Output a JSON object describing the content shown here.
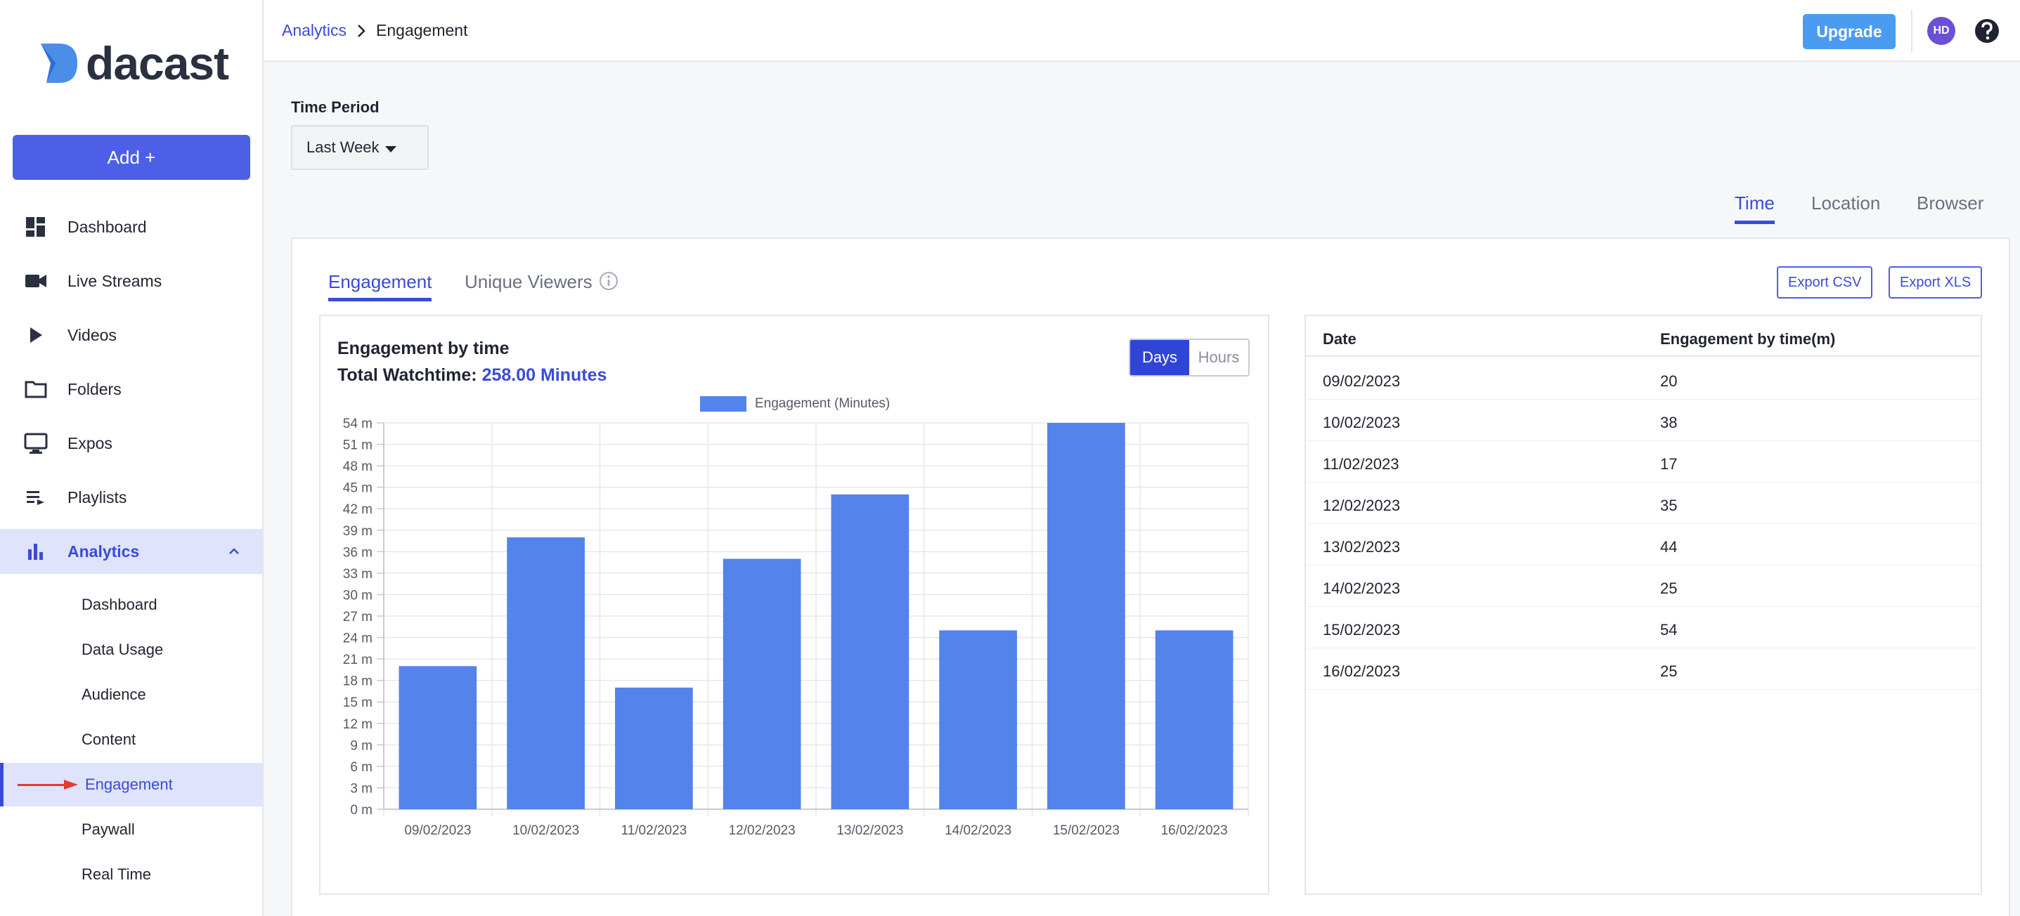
{
  "brand": {
    "name": "dacast"
  },
  "sidebar": {
    "add_label": "Add +",
    "items": [
      {
        "label": "Dashboard",
        "icon": "dashboard-icon"
      },
      {
        "label": "Live Streams",
        "icon": "video-camera-icon"
      },
      {
        "label": "Videos",
        "icon": "play-icon"
      },
      {
        "label": "Folders",
        "icon": "folder-icon"
      },
      {
        "label": "Expos",
        "icon": "monitor-icon"
      },
      {
        "label": "Playlists",
        "icon": "playlist-icon"
      },
      {
        "label": "Analytics",
        "icon": "bar-chart-icon",
        "active": true
      }
    ],
    "analytics_sub": [
      {
        "label": "Dashboard"
      },
      {
        "label": "Data Usage"
      },
      {
        "label": "Audience"
      },
      {
        "label": "Content"
      },
      {
        "label": "Engagement",
        "active": true
      },
      {
        "label": "Paywall"
      },
      {
        "label": "Real Time"
      }
    ]
  },
  "header": {
    "breadcrumb": {
      "parent": "Analytics",
      "current": "Engagement"
    },
    "upgrade_label": "Upgrade",
    "avatar_initials": "HD"
  },
  "main": {
    "time_period_label": "Time Period",
    "time_period_value": "Last Week",
    "view_tabs": [
      {
        "label": "Time",
        "active": true
      },
      {
        "label": "Location"
      },
      {
        "label": "Browser"
      }
    ],
    "metric_tabs": [
      {
        "label": "Engagement",
        "active": true
      },
      {
        "label": "Unique Viewers"
      }
    ],
    "export_csv_label": "Export CSV",
    "export_xls_label": "Export XLS",
    "chart_heading": "Engagement by time",
    "total_label": "Total Watchtime:",
    "total_value": "258.00 Minutes",
    "granularity": {
      "days": "Days",
      "hours": "Hours",
      "selected": "Days"
    },
    "table": {
      "headers": [
        "Date",
        "Engagement by time(m)"
      ],
      "rows": [
        [
          "09/02/2023",
          "20"
        ],
        [
          "10/02/2023",
          "38"
        ],
        [
          "11/02/2023",
          "17"
        ],
        [
          "12/02/2023",
          "35"
        ],
        [
          "13/02/2023",
          "44"
        ],
        [
          "14/02/2023",
          "25"
        ],
        [
          "15/02/2023",
          "54"
        ],
        [
          "16/02/2023",
          "25"
        ]
      ]
    }
  },
  "colors": {
    "accent": "#3a4bd8",
    "bar": "#5483ec",
    "upgrade": "#4a9cf0",
    "avatar": "#6a4fd8",
    "arrow": "#e53a2f"
  },
  "chart_data": {
    "type": "bar",
    "categories": [
      "09/02/2023",
      "10/02/2023",
      "11/02/2023",
      "12/02/2023",
      "13/02/2023",
      "14/02/2023",
      "15/02/2023",
      "16/02/2023"
    ],
    "series": [
      {
        "name": "Engagement (Minutes)",
        "values": [
          20,
          38,
          17,
          35,
          44,
          25,
          54,
          25
        ]
      }
    ],
    "ylim": [
      0,
      54
    ],
    "yticks": [
      "0 m",
      "3 m",
      "6 m",
      "9 m",
      "12 m",
      "15 m",
      "18 m",
      "21 m",
      "24 m",
      "27 m",
      "30 m",
      "33 m",
      "36 m",
      "39 m",
      "42 m",
      "45 m",
      "48 m",
      "51 m",
      "54 m"
    ],
    "grid": true,
    "legend": "top-center"
  }
}
